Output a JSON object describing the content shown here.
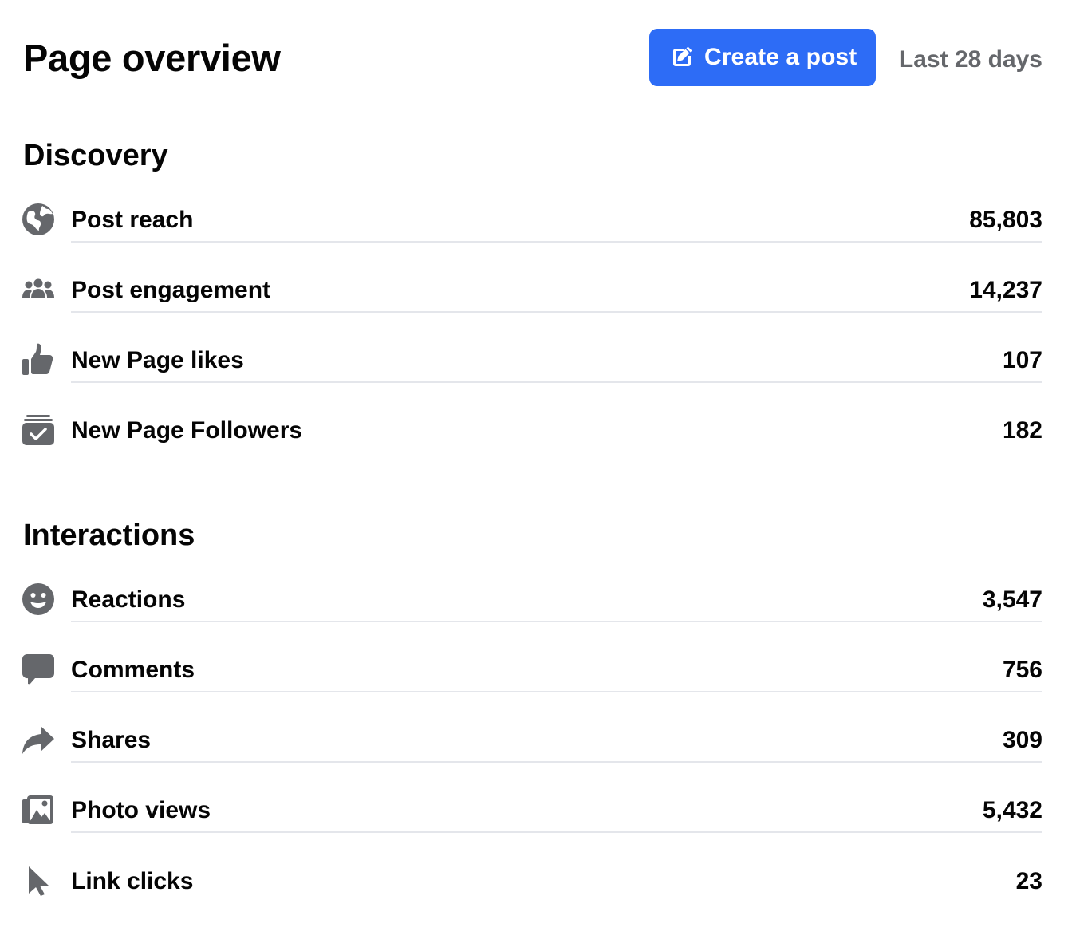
{
  "header": {
    "title": "Page overview",
    "create_post_label": "Create a post",
    "date_range": "Last 28 days"
  },
  "colors": {
    "accent": "#2d6cf6",
    "icon": "#65676b",
    "divider": "#e4e6eb",
    "secondary_text": "#65676b"
  },
  "discovery": {
    "title": "Discovery",
    "rows": [
      {
        "label": "Post reach",
        "value": "85,803",
        "icon": "globe-icon"
      },
      {
        "label": "Post engagement",
        "value": "14,237",
        "icon": "people-icon"
      },
      {
        "label": "New Page likes",
        "value": "107",
        "icon": "thumbs-up-icon"
      },
      {
        "label": "New Page Followers",
        "value": "182",
        "icon": "follower-check-icon"
      }
    ]
  },
  "interactions": {
    "title": "Interactions",
    "rows": [
      {
        "label": "Reactions",
        "value": "3,547",
        "icon": "smiley-icon"
      },
      {
        "label": "Comments",
        "value": "756",
        "icon": "comment-icon"
      },
      {
        "label": "Shares",
        "value": "309",
        "icon": "share-arrow-icon"
      },
      {
        "label": "Photo views",
        "value": "5,432",
        "icon": "photos-icon"
      },
      {
        "label": "Link clicks",
        "value": "23",
        "icon": "cursor-icon"
      }
    ]
  }
}
